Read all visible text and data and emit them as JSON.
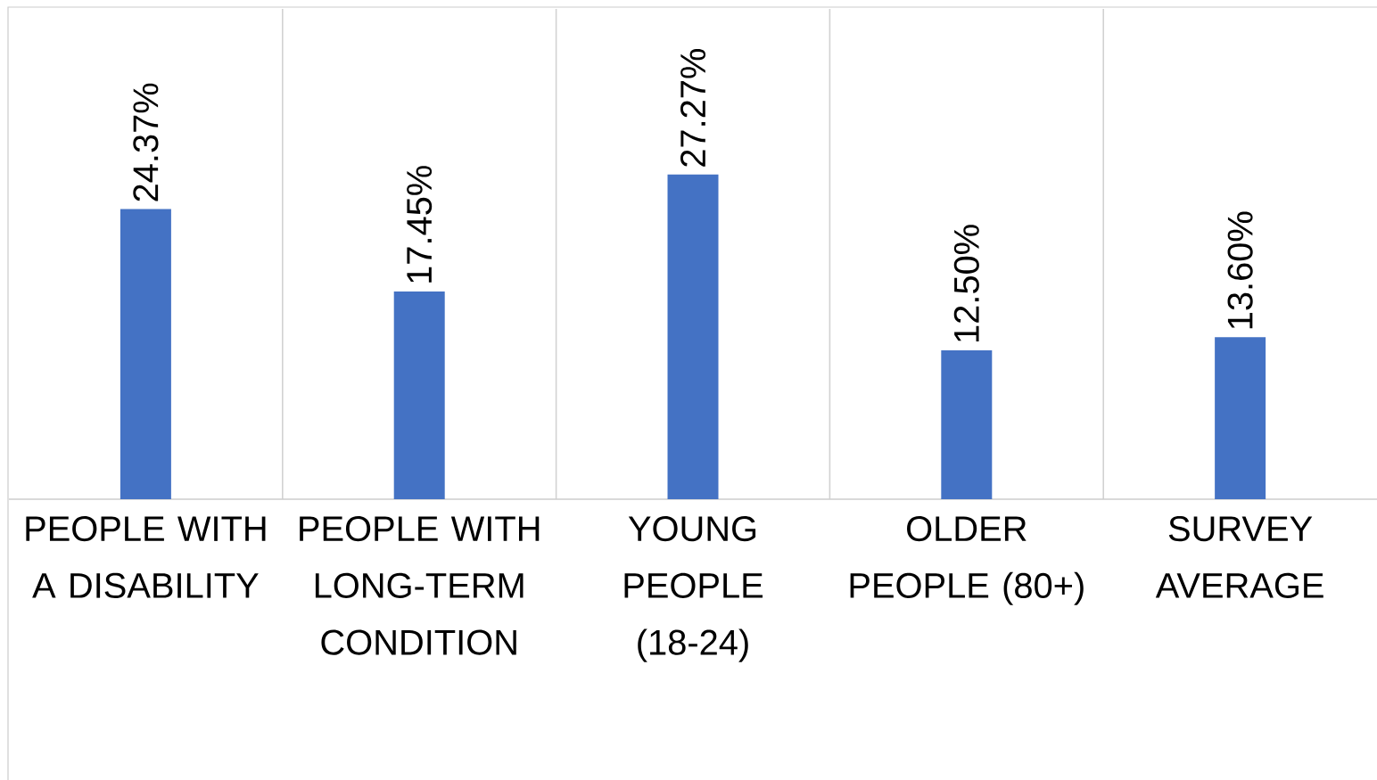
{
  "chart_data": {
    "type": "bar",
    "categories": [
      "PEOPLE WITH A DISABILITY",
      "PEOPLE WITH LONG-TERM CONDITION",
      "YOUNG PEOPLE (18-24)",
      "OLDER PEOPLE (80+)",
      "SURVEY AVERAGE"
    ],
    "values": [
      24.37,
      17.45,
      27.27,
      12.5,
      13.6
    ],
    "value_labels": [
      "24.37%",
      "17.45%",
      "27.27%",
      "12.50%",
      "13.60%"
    ],
    "color": "#4472c4",
    "grid": "x"
  }
}
